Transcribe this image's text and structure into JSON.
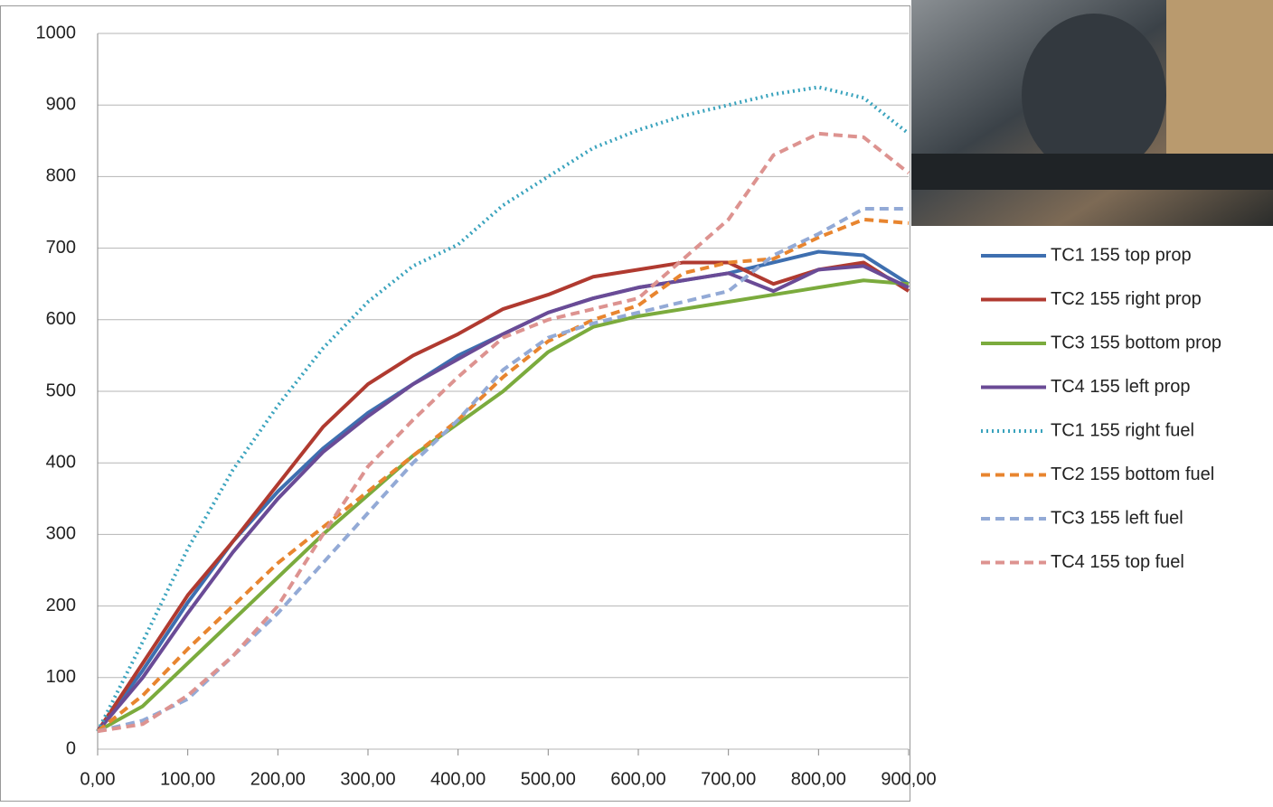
{
  "chart_data": {
    "type": "line",
    "x": [
      0,
      50,
      100,
      150,
      200,
      250,
      300,
      350,
      400,
      450,
      500,
      550,
      600,
      650,
      700,
      750,
      800,
      850,
      900
    ],
    "xlim": [
      0,
      900
    ],
    "xticks": [
      {
        "value": 0,
        "label": "0,00"
      },
      {
        "value": 100,
        "label": "100,00"
      },
      {
        "value": 200,
        "label": "200,00"
      },
      {
        "value": 300,
        "label": "300,00"
      },
      {
        "value": 400,
        "label": "400,00"
      },
      {
        "value": 500,
        "label": "500,00"
      },
      {
        "value": 600,
        "label": "600,00"
      },
      {
        "value": 700,
        "label": "700,00"
      },
      {
        "value": 800,
        "label": "800,00"
      },
      {
        "value": 900,
        "label": "900,00"
      }
    ],
    "ylim": [
      0,
      1000
    ],
    "yticks": [
      0,
      100,
      200,
      300,
      400,
      500,
      600,
      700,
      800,
      900,
      1000
    ],
    "grid": true,
    "series": [
      {
        "name": "TC1 155 top prop",
        "color": "#3e6fb0",
        "dash": "solid",
        "values": [
          25,
          110,
          205,
          290,
          360,
          420,
          470,
          510,
          550,
          580,
          610,
          630,
          645,
          655,
          665,
          680,
          695,
          690,
          650
        ]
      },
      {
        "name": "TC2 155 right prop",
        "color": "#b03a30",
        "dash": "solid",
        "values": [
          25,
          120,
          215,
          290,
          370,
          450,
          510,
          550,
          580,
          615,
          635,
          660,
          670,
          680,
          680,
          650,
          670,
          680,
          640
        ]
      },
      {
        "name": "TC3 155 bottom prop",
        "color": "#7bab3d",
        "dash": "solid",
        "values": [
          25,
          60,
          120,
          180,
          240,
          300,
          355,
          410,
          455,
          500,
          555,
          590,
          605,
          615,
          625,
          635,
          645,
          655,
          650
        ]
      },
      {
        "name": "TC4 155 left prop",
        "color": "#6a4b96",
        "dash": "solid",
        "values": [
          25,
          100,
          190,
          275,
          350,
          415,
          465,
          510,
          545,
          580,
          610,
          630,
          645,
          655,
          665,
          640,
          670,
          675,
          645
        ]
      },
      {
        "name": "TC1 155 right fuel",
        "color": "#3aa3bd",
        "dash": "dotted",
        "values": [
          25,
          150,
          280,
          390,
          480,
          560,
          625,
          675,
          705,
          760,
          800,
          840,
          865,
          885,
          900,
          915,
          925,
          910,
          860
        ]
      },
      {
        "name": "TC2 155 bottom fuel",
        "color": "#e8852f",
        "dash": "dashed",
        "values": [
          25,
          75,
          140,
          200,
          260,
          310,
          360,
          410,
          460,
          520,
          570,
          600,
          620,
          665,
          680,
          685,
          715,
          740,
          735
        ]
      },
      {
        "name": "TC3 155 left fuel",
        "color": "#93aad6",
        "dash": "dashed",
        "values": [
          25,
          40,
          70,
          130,
          190,
          260,
          330,
          400,
          460,
          530,
          575,
          595,
          610,
          625,
          640,
          690,
          720,
          755,
          755
        ]
      },
      {
        "name": "TC4 155 top fuel",
        "color": "#dd9390",
        "dash": "dashed",
        "values": [
          25,
          35,
          75,
          130,
          200,
          300,
          395,
          460,
          520,
          575,
          600,
          615,
          630,
          685,
          740,
          830,
          860,
          855,
          805
        ]
      }
    ]
  }
}
